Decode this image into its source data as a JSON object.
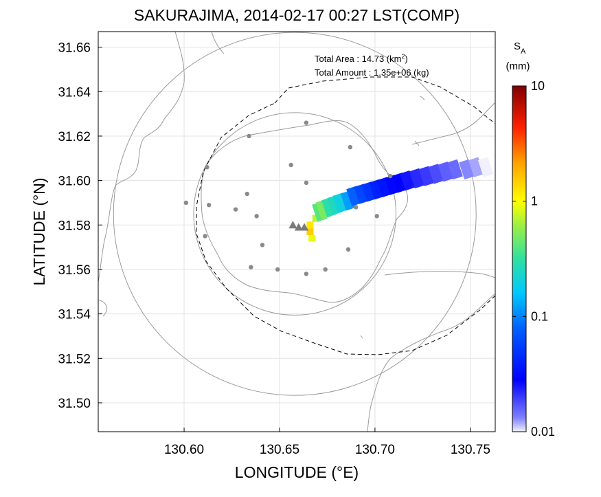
{
  "title": "SAKURAJIMA, 2014-02-17 00:27 LST(COMP)",
  "chart_data": {
    "type": "heatmap",
    "xlabel": "LONGITUDE (°E)",
    "ylabel": "LATITUDE (°N)",
    "xlim": [
      130.555,
      130.763
    ],
    "ylim": [
      31.487,
      31.667
    ],
    "xticks": [
      "130.60",
      "130.65",
      "130.70",
      "130.75"
    ],
    "yticks": [
      "31.50",
      "31.52",
      "31.54",
      "31.56",
      "31.58",
      "31.60",
      "31.62",
      "31.64",
      "31.66"
    ],
    "grid": true,
    "annotations": {
      "area_label": "Total Area   : 14.73 (km",
      "area_sup": "2",
      "area_tail": ")",
      "amount_label": "Total Amount : 1.35e+06 (kg)"
    },
    "colorbar": {
      "label_main": "S",
      "label_sub": "A",
      "unit": "(mm)",
      "scale": "log",
      "range": [
        0.01,
        10
      ],
      "ticks": [
        "10",
        "1",
        "0.1",
        "0.01"
      ]
    },
    "radar_center": [
      130.658,
      31.585
    ],
    "range_rings_deg": [
      0.053,
      0.095
    ],
    "vents": [
      [
        130.657,
        31.58
      ],
      [
        130.66,
        31.579
      ],
      [
        130.663,
        31.579
      ]
    ],
    "stations": [
      [
        130.664,
        31.626
      ],
      [
        130.634,
        31.62
      ],
      [
        130.687,
        31.615
      ],
      [
        130.612,
        31.606
      ],
      [
        130.656,
        31.607
      ],
      [
        130.708,
        31.602
      ],
      [
        130.664,
        31.599
      ],
      [
        130.601,
        31.59
      ],
      [
        130.613,
        31.589
      ],
      [
        130.633,
        31.594
      ],
      [
        130.627,
        31.587
      ],
      [
        130.638,
        31.584
      ],
      [
        130.69,
        31.588
      ],
      [
        130.701,
        31.584
      ],
      [
        130.611,
        31.575
      ],
      [
        130.641,
        31.571
      ],
      [
        130.686,
        31.569
      ],
      [
        130.635,
        31.561
      ],
      [
        130.649,
        31.56
      ],
      [
        130.674,
        31.56
      ],
      [
        130.664,
        31.558
      ]
    ],
    "ashfall_cells": [
      [
        130.667,
        31.574,
        0.9
      ],
      [
        130.666,
        31.577,
        1.5
      ],
      [
        130.666,
        31.58,
        1.2
      ],
      [
        130.669,
        31.583,
        0.7
      ],
      [
        130.671,
        31.586,
        0.4
      ],
      [
        130.673,
        31.587,
        0.5
      ],
      [
        130.676,
        31.588,
        0.3
      ],
      [
        130.679,
        31.589,
        0.25
      ],
      [
        130.682,
        31.59,
        0.2
      ],
      [
        130.686,
        31.591,
        0.12
      ],
      [
        130.689,
        31.593,
        0.08
      ],
      [
        130.693,
        31.594,
        0.06
      ],
      [
        130.697,
        31.595,
        0.05
      ],
      [
        130.701,
        31.596,
        0.04
      ],
      [
        130.705,
        31.597,
        0.035
      ],
      [
        130.709,
        31.598,
        0.03
      ],
      [
        130.713,
        31.599,
        0.028
      ],
      [
        130.717,
        31.6,
        0.025
      ],
      [
        130.722,
        31.601,
        0.022
      ],
      [
        130.727,
        31.602,
        0.02
      ],
      [
        130.732,
        31.603,
        0.018
      ],
      [
        130.737,
        31.604,
        0.016
      ],
      [
        130.742,
        31.605,
        0.015
      ],
      [
        130.748,
        31.605,
        0.013
      ],
      [
        130.753,
        31.606,
        0.012
      ],
      [
        130.758,
        31.606,
        0.01
      ]
    ]
  }
}
